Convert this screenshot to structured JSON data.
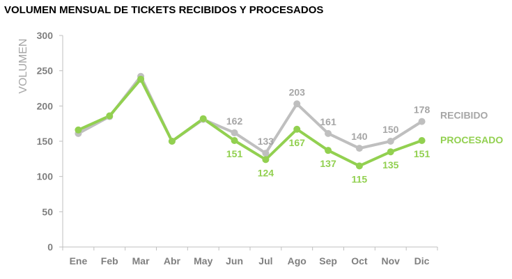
{
  "chart_data": {
    "type": "line",
    "title": "VOLUMEN MENSUAL DE TICKETS RECIBIDOS Y PROCESADOS",
    "xlabel": "",
    "ylabel": "VOLUMEN",
    "categories": [
      "Ene",
      "Feb",
      "Mar",
      "Abr",
      "May",
      "Jun",
      "Jul",
      "Ago",
      "Sep",
      "Oct",
      "Nov",
      "Dic"
    ],
    "ylim": [
      0,
      300
    ],
    "yticks": [
      0,
      50,
      100,
      150,
      200,
      250,
      300
    ],
    "grid": false,
    "legend": "right",
    "series": [
      {
        "name": "RECIBIDO",
        "color": "#bfbfbf",
        "values": [
          161,
          185,
          242,
          150,
          181,
          162,
          133,
          203,
          161,
          140,
          150,
          178
        ],
        "labels": [
          null,
          null,
          null,
          null,
          null,
          "162",
          "133",
          "203",
          "161",
          "140",
          "150",
          "178"
        ]
      },
      {
        "name": "PROCESADO",
        "color": "#92d050",
        "values": [
          166,
          186,
          238,
          150,
          182,
          151,
          124,
          167,
          137,
          115,
          135,
          151
        ],
        "labels": [
          null,
          null,
          null,
          null,
          null,
          "151",
          "124",
          "167",
          "137",
          "115",
          "135",
          "151"
        ]
      }
    ]
  }
}
